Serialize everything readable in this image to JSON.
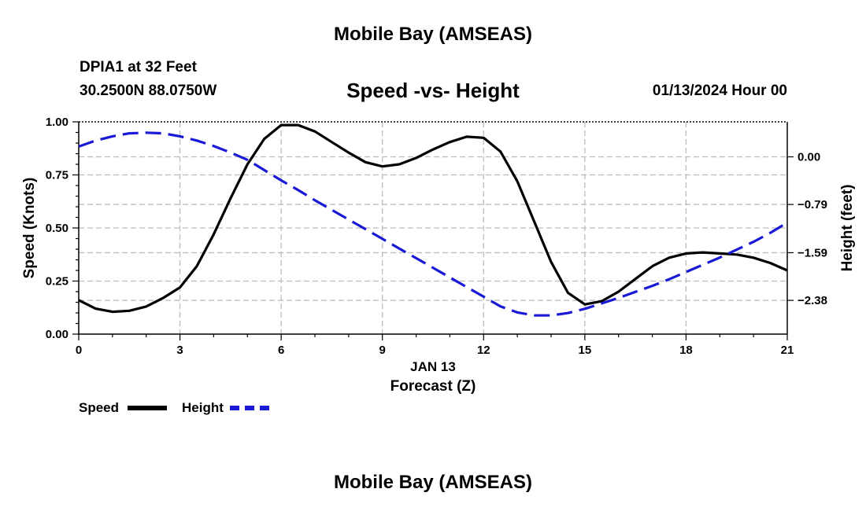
{
  "header": {
    "title": "Mobile Bay (AMSEAS)",
    "station": "DPIA1 at 32 Feet",
    "coords": "30.2500N  88.0750W",
    "date": "01/13/2024 Hour 00",
    "footer_title": "Mobile Bay (AMSEAS)"
  },
  "colors": {
    "speed": "#000000",
    "height": "#1a1ad6",
    "grid": "#bdbdbd"
  },
  "chart_data": {
    "type": "line",
    "title": "Speed -vs- Height",
    "xlabel": "Forecast (Z)",
    "date_label": "JAN 13",
    "ylabel": "Speed (Knots)",
    "y2label": "Height (feet)",
    "xlim": [
      0,
      21
    ],
    "ylim": [
      0,
      1
    ],
    "y2lim": [
      -2.94,
      0.58
    ],
    "x_ticks": [
      0,
      3,
      6,
      9,
      12,
      15,
      18,
      21
    ],
    "x_tick_labels": [
      "0",
      "3",
      "6",
      "9",
      "12",
      "15",
      "18",
      "21"
    ],
    "y_ticks": [
      0,
      0.25,
      0.5,
      0.75,
      1.0
    ],
    "y_tick_labels": [
      "0.00",
      "0.25",
      "0.50",
      "0.75",
      "1.00"
    ],
    "y2_ticks": [
      0.0,
      -0.79,
      -1.59,
      -2.38
    ],
    "y2_tick_labels": [
      "0.00",
      "−0.79",
      "−1.59",
      "−2.38"
    ],
    "grid": true,
    "legend": [
      {
        "name": "Speed",
        "style": "solid"
      },
      {
        "name": "Height",
        "style": "dashed"
      }
    ],
    "series": [
      {
        "name": "Speed",
        "axis": "left",
        "x": [
          0,
          0.5,
          1,
          1.5,
          2,
          2.5,
          3,
          3.5,
          4,
          4.5,
          5,
          5.5,
          6,
          6.5,
          7,
          7.5,
          8,
          8.5,
          9,
          9.5,
          10,
          10.5,
          11,
          11.5,
          12,
          12.5,
          13,
          13.5,
          14,
          14.5,
          15,
          15.5,
          16,
          16.5,
          17,
          17.5,
          18,
          18.5,
          19,
          19.5,
          20,
          20.5,
          21
        ],
        "values": [
          0.16,
          0.12,
          0.105,
          0.11,
          0.13,
          0.17,
          0.22,
          0.32,
          0.47,
          0.64,
          0.8,
          0.92,
          0.985,
          0.985,
          0.955,
          0.905,
          0.855,
          0.81,
          0.79,
          0.8,
          0.83,
          0.87,
          0.905,
          0.93,
          0.925,
          0.86,
          0.72,
          0.53,
          0.34,
          0.195,
          0.14,
          0.155,
          0.2,
          0.26,
          0.32,
          0.36,
          0.38,
          0.385,
          0.38,
          0.375,
          0.36,
          0.335,
          0.3
        ]
      },
      {
        "name": "Height",
        "axis": "right",
        "x": [
          0,
          0.5,
          1,
          1.5,
          2,
          2.5,
          3,
          3.5,
          4,
          4.5,
          5,
          5.5,
          6,
          6.5,
          7,
          7.5,
          8,
          8.5,
          9,
          9.5,
          10,
          10.5,
          11,
          11.5,
          12,
          12.5,
          13,
          13.5,
          14,
          14.5,
          15,
          15.5,
          16,
          16.5,
          17,
          17.5,
          18,
          18.5,
          19,
          19.5,
          20,
          20.5,
          21
        ],
        "values": [
          0.17,
          0.27,
          0.34,
          0.39,
          0.4,
          0.39,
          0.34,
          0.27,
          0.18,
          0.07,
          -0.05,
          -0.22,
          -0.39,
          -0.55,
          -0.72,
          -0.88,
          -1.04,
          -1.2,
          -1.36,
          -1.52,
          -1.68,
          -1.84,
          -2.0,
          -2.16,
          -2.32,
          -2.48,
          -2.58,
          -2.63,
          -2.63,
          -2.59,
          -2.52,
          -2.43,
          -2.34,
          -2.24,
          -2.14,
          -2.03,
          -1.91,
          -1.79,
          -1.67,
          -1.54,
          -1.41,
          -1.26,
          -1.09
        ]
      }
    ]
  }
}
